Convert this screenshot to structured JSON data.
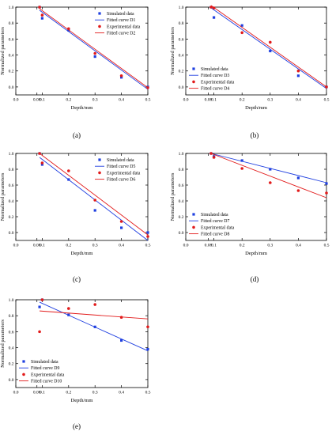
{
  "colors": {
    "blue": "#1f3fe0",
    "red": "#e21b1b",
    "axis": "#000000"
  },
  "chart_data": [
    {
      "panel_label": "(a)",
      "type": "scatter",
      "xlabel": "Depth/mm",
      "ylabel": "Normalized parameters",
      "xlim": [
        0.0,
        0.5
      ],
      "ylim": [
        -0.1,
        1.0
      ],
      "xticks": [
        "0.0",
        "0.08",
        "0.1",
        "0.2",
        "0.3",
        "0.4",
        "0.5"
      ],
      "yticks": [
        "0.0",
        "0.2",
        "0.4",
        "0.6",
        "0.8",
        "1.0"
      ],
      "legend_position": "top-right",
      "series": [
        {
          "name": "Simulated data",
          "kind": "points",
          "color": "#1f3fe0",
          "points": [
            [
              0.09,
              1.0
            ],
            [
              0.1,
              0.86
            ],
            [
              0.2,
              0.71
            ],
            [
              0.3,
              0.38
            ],
            [
              0.4,
              0.12
            ],
            [
              0.5,
              0.0
            ]
          ]
        },
        {
          "name": "Fitted curve D1",
          "kind": "line",
          "color": "#1f3fe0",
          "points": [
            [
              0.09,
              0.96
            ],
            [
              0.5,
              -0.03
            ]
          ]
        },
        {
          "name": "Experimental data",
          "kind": "points",
          "color": "#e21b1b",
          "points": [
            [
              0.09,
              1.0
            ],
            [
              0.1,
              0.9
            ],
            [
              0.2,
              0.73
            ],
            [
              0.3,
              0.42
            ],
            [
              0.4,
              0.14
            ],
            [
              0.5,
              -0.01
            ]
          ]
        },
        {
          "name": "Fitted curve D2",
          "kind": "line",
          "color": "#e21b1b",
          "points": [
            [
              0.09,
              0.98
            ],
            [
              0.5,
              -0.01
            ]
          ]
        }
      ]
    },
    {
      "panel_label": "(b)",
      "type": "scatter",
      "xlabel": "Depth/mm",
      "ylabel": "Normalized parameters",
      "xlim": [
        0.0,
        0.5
      ],
      "ylim": [
        -0.1,
        1.0
      ],
      "xticks": [
        "0.0",
        "0.08",
        "0.1",
        "0.2",
        "0.3",
        "0.4",
        "0.5"
      ],
      "yticks": [
        "0.0",
        "0.2",
        "0.4",
        "0.6",
        "0.8",
        "1.0"
      ],
      "legend_position": "bottom-left",
      "series": [
        {
          "name": "Simulated data",
          "kind": "points",
          "color": "#1f3fe0",
          "points": [
            [
              0.09,
              1.0
            ],
            [
              0.1,
              0.87
            ],
            [
              0.2,
              0.77
            ],
            [
              0.3,
              0.45
            ],
            [
              0.4,
              0.14
            ],
            [
              0.5,
              0.0
            ]
          ]
        },
        {
          "name": "Fitted curve D3",
          "kind": "line",
          "color": "#1f3fe0",
          "points": [
            [
              0.09,
              0.99
            ],
            [
              0.5,
              -0.02
            ]
          ]
        },
        {
          "name": "Experimental data",
          "kind": "points",
          "color": "#e21b1b",
          "points": [
            [
              0.09,
              1.0
            ],
            [
              0.1,
              0.99
            ],
            [
              0.2,
              0.68
            ],
            [
              0.3,
              0.56
            ],
            [
              0.4,
              0.2
            ],
            [
              0.5,
              0.0
            ]
          ]
        },
        {
          "name": "Fitted curve D4",
          "kind": "line",
          "color": "#e21b1b",
          "points": [
            [
              0.09,
              1.02
            ],
            [
              0.5,
              0.0
            ]
          ]
        }
      ]
    },
    {
      "panel_label": "(c)",
      "type": "scatter",
      "xlabel": "Depth/mm",
      "ylabel": "Normalized parameters",
      "xlim": [
        0.0,
        0.5
      ],
      "ylim": [
        -0.1,
        1.0
      ],
      "xticks": [
        "0.0",
        "0.08",
        "0.1",
        "0.2",
        "0.3",
        "0.4",
        "0.5"
      ],
      "yticks": [
        "0.0",
        "0.2",
        "0.4",
        "0.6",
        "0.8",
        "1.0"
      ],
      "legend_position": "top-right",
      "series": [
        {
          "name": "Simulated data",
          "kind": "points",
          "color": "#1f3fe0",
          "points": [
            [
              0.09,
              1.0
            ],
            [
              0.1,
              0.86
            ],
            [
              0.2,
              0.67
            ],
            [
              0.3,
              0.28
            ],
            [
              0.4,
              0.06
            ],
            [
              0.5,
              0.0
            ]
          ]
        },
        {
          "name": "Fitted curve D5",
          "kind": "line",
          "color": "#1f3fe0",
          "points": [
            [
              0.09,
              0.95
            ],
            [
              0.5,
              -0.1
            ]
          ]
        },
        {
          "name": "Experimental data",
          "kind": "points",
          "color": "#e21b1b",
          "points": [
            [
              0.09,
              1.0
            ],
            [
              0.1,
              0.88
            ],
            [
              0.2,
              0.78
            ],
            [
              0.3,
              0.41
            ],
            [
              0.4,
              0.14
            ],
            [
              0.5,
              -0.05
            ]
          ]
        },
        {
          "name": "Fitted curve D6",
          "kind": "line",
          "color": "#e21b1b",
          "points": [
            [
              0.09,
              1.0
            ],
            [
              0.5,
              -0.03
            ]
          ]
        }
      ]
    },
    {
      "panel_label": "(d)",
      "type": "scatter",
      "xlabel": "Depth/mm",
      "ylabel": "Normalized parameters",
      "xlim": [
        0.0,
        0.5
      ],
      "ylim": [
        -0.1,
        1.0
      ],
      "xticks": [
        "0.0",
        "0.08",
        "0.1",
        "0.2",
        "0.3",
        "0.4",
        "0.5"
      ],
      "yticks": [
        "0.0",
        "0.2",
        "0.4",
        "0.6",
        "0.8",
        "1.0"
      ],
      "legend_position": "bottom-left",
      "series": [
        {
          "name": "Simulated data",
          "kind": "points",
          "color": "#1f3fe0",
          "points": [
            [
              0.09,
              1.0
            ],
            [
              0.1,
              0.96
            ],
            [
              0.2,
              0.91
            ],
            [
              0.3,
              0.8
            ],
            [
              0.4,
              0.69
            ],
            [
              0.5,
              0.62
            ]
          ]
        },
        {
          "name": "Fitted curve D7",
          "kind": "line",
          "color": "#1f3fe0",
          "points": [
            [
              0.09,
              1.0
            ],
            [
              0.5,
              0.63
            ]
          ]
        },
        {
          "name": "Experimental data",
          "kind": "points",
          "color": "#e21b1b",
          "points": [
            [
              0.09,
              1.0
            ],
            [
              0.1,
              0.95
            ],
            [
              0.2,
              0.81
            ],
            [
              0.3,
              0.63
            ],
            [
              0.4,
              0.53
            ],
            [
              0.5,
              0.5
            ]
          ]
        },
        {
          "name": "Fitted curve D8",
          "kind": "line",
          "color": "#e21b1b",
          "points": [
            [
              0.09,
              1.0
            ],
            [
              0.5,
              0.44
            ]
          ]
        }
      ]
    },
    {
      "panel_label": "(e)",
      "type": "scatter",
      "xlabel": "Depth/mm",
      "ylabel": "Normalized parameters",
      "xlim": [
        0.0,
        0.5
      ],
      "ylim": [
        -0.1,
        1.0
      ],
      "xticks": [
        "0.0",
        "0.08",
        "0.1",
        "0.2",
        "0.3",
        "0.4",
        "0.5"
      ],
      "yticks": [
        "0.0",
        "0.2",
        "0.4",
        "0.6",
        "0.8",
        "1.0"
      ],
      "legend_position": "bottom-left",
      "series": [
        {
          "name": "Simulated data",
          "kind": "points",
          "color": "#1f3fe0",
          "points": [
            [
              0.09,
              0.91
            ],
            [
              0.1,
              1.0
            ],
            [
              0.2,
              0.81
            ],
            [
              0.3,
              0.66
            ],
            [
              0.4,
              0.49
            ],
            [
              0.5,
              0.38
            ]
          ]
        },
        {
          "name": "Fitted curve D9",
          "kind": "line",
          "color": "#1f3fe0",
          "points": [
            [
              0.09,
              0.97
            ],
            [
              0.5,
              0.36
            ]
          ]
        },
        {
          "name": "Experimental data",
          "kind": "points",
          "color": "#e21b1b",
          "points": [
            [
              0.09,
              0.6
            ],
            [
              0.1,
              1.0
            ],
            [
              0.2,
              0.89
            ],
            [
              0.3,
              0.94
            ],
            [
              0.4,
              0.78
            ],
            [
              0.5,
              0.66
            ]
          ]
        },
        {
          "name": "Fitted curve D10",
          "kind": "line",
          "color": "#e21b1b",
          "points": [
            [
              0.09,
              0.86
            ],
            [
              0.5,
              0.76
            ]
          ]
        }
      ]
    }
  ]
}
